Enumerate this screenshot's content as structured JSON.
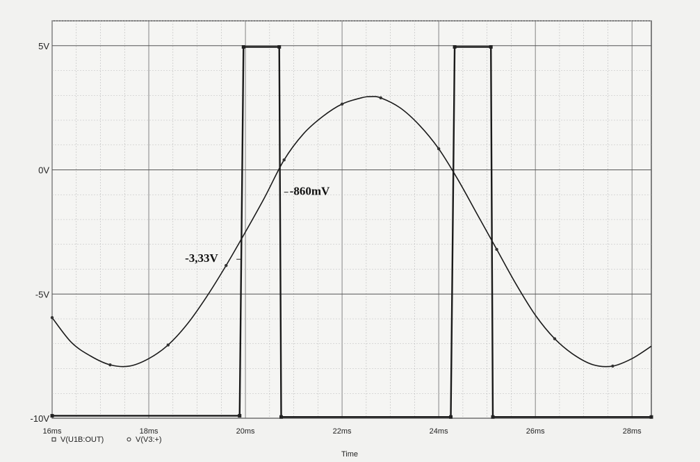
{
  "chart_data": {
    "type": "line",
    "xlabel": "Time",
    "ylabel": "",
    "xlim": [
      16,
      28.4
    ],
    "ylim": [
      -10,
      6
    ],
    "grid": true,
    "x_ticks": [
      {
        "value": 16,
        "label": "16ms"
      },
      {
        "value": 18,
        "label": "18ms"
      },
      {
        "value": 20,
        "label": "20ms"
      },
      {
        "value": 22,
        "label": "22ms"
      },
      {
        "value": 24,
        "label": "24ms"
      },
      {
        "value": 26,
        "label": "26ms"
      },
      {
        "value": 28,
        "label": "28ms"
      }
    ],
    "y_ticks": [
      {
        "value": 5,
        "label": "5V"
      },
      {
        "value": 0,
        "label": "0V"
      },
      {
        "value": -5,
        "label": "-5V"
      },
      {
        "value": -10,
        "label": "-10V"
      }
    ],
    "legend_position": "bottom-left",
    "series": [
      {
        "name": "V(U1B:OUT)",
        "marker": "square",
        "color": "#1a1a1a",
        "x": [
          16.0,
          19.88,
          19.96,
          20.7,
          20.74,
          24.25,
          24.33,
          25.08,
          25.12,
          28.4
        ],
        "y": [
          -9.9,
          -9.9,
          4.95,
          4.95,
          -9.95,
          -9.95,
          4.95,
          4.95,
          -9.95,
          -9.95
        ]
      },
      {
        "name": "V(V3:+)",
        "marker": "circle",
        "color": "#1a1a1a",
        "x": [
          16.0,
          16.4,
          16.8,
          17.2,
          17.6,
          18.0,
          18.4,
          18.8,
          19.2,
          19.6,
          20.0,
          20.4,
          20.8,
          21.2,
          21.6,
          22.0,
          22.4,
          22.6,
          22.8,
          23.2,
          23.6,
          24.0,
          24.4,
          24.8,
          25.2,
          25.6,
          26.0,
          26.4,
          26.8,
          27.2,
          27.6,
          28.0,
          28.4
        ],
        "y": [
          -5.95,
          -6.95,
          -7.5,
          -7.85,
          -7.9,
          -7.6,
          -7.05,
          -6.2,
          -5.1,
          -3.85,
          -2.5,
          -1.1,
          0.4,
          1.45,
          2.15,
          2.65,
          2.9,
          2.95,
          2.9,
          2.5,
          1.8,
          0.85,
          -0.4,
          -1.8,
          -3.2,
          -4.6,
          -5.85,
          -6.8,
          -7.45,
          -7.85,
          -7.9,
          -7.6,
          -7.1
        ]
      }
    ],
    "annotations": [
      {
        "text": "-860mV",
        "x": 20.8,
        "y": -0.9
      },
      {
        "text": "-3,33V",
        "x": 19.9,
        "y": -3.6
      }
    ]
  }
}
